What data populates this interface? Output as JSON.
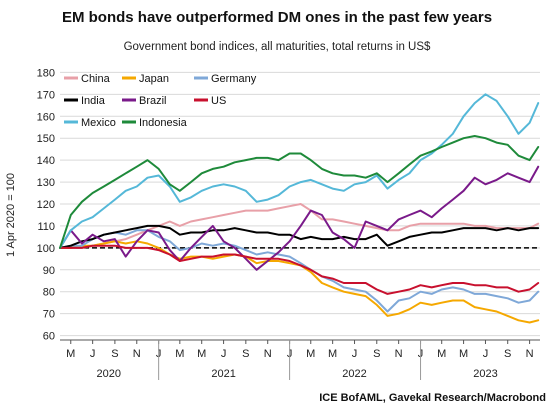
{
  "chart_data": {
    "type": "line",
    "title": "EM bonds have outperformed DM ones in the past few years",
    "subtitle": "Government bond indices, all maturities, total returns in US$",
    "ylabel": "1 Apr 2020 = 100",
    "source": "ICE BofAML, Gavekal Research/Macrobond",
    "ylim": [
      58,
      182
    ],
    "yticks": [
      60,
      70,
      80,
      90,
      100,
      110,
      120,
      130,
      140,
      150,
      160,
      170,
      180
    ],
    "xlim": [
      "2020-04-01",
      "2023-11-30"
    ],
    "month_ticks": [
      {
        "date": "2020-05-01",
        "label": "M"
      },
      {
        "date": "2020-07-01",
        "label": "J"
      },
      {
        "date": "2020-09-01",
        "label": "S"
      },
      {
        "date": "2020-11-01",
        "label": "N"
      },
      {
        "date": "2021-01-01",
        "label": "J"
      },
      {
        "date": "2021-03-01",
        "label": "M"
      },
      {
        "date": "2021-05-01",
        "label": "M"
      },
      {
        "date": "2021-07-01",
        "label": "J"
      },
      {
        "date": "2021-09-01",
        "label": "S"
      },
      {
        "date": "2021-11-01",
        "label": "N"
      },
      {
        "date": "2022-01-01",
        "label": "J"
      },
      {
        "date": "2022-03-01",
        "label": "M"
      },
      {
        "date": "2022-05-01",
        "label": "M"
      },
      {
        "date": "2022-07-01",
        "label": "J"
      },
      {
        "date": "2022-09-01",
        "label": "S"
      },
      {
        "date": "2022-11-01",
        "label": "N"
      },
      {
        "date": "2023-01-01",
        "label": "J"
      },
      {
        "date": "2023-03-01",
        "label": "M"
      },
      {
        "date": "2023-05-01",
        "label": "M"
      },
      {
        "date": "2023-07-01",
        "label": "J"
      },
      {
        "date": "2023-09-01",
        "label": "S"
      },
      {
        "date": "2023-11-01",
        "label": "N"
      }
    ],
    "year_labels": [
      {
        "date": "2020-08-15",
        "label": "2020"
      },
      {
        "date": "2021-07-01",
        "label": "2021"
      },
      {
        "date": "2022-07-01",
        "label": "2022"
      },
      {
        "date": "2023-07-01",
        "label": "2023"
      }
    ],
    "year_separators": [
      "2021-01-01",
      "2022-01-01",
      "2023-01-01"
    ],
    "reference_line": 100,
    "legend_placement": "top-left",
    "grid": "horizontal",
    "x": [
      "2020-04-01",
      "2020-05-01",
      "2020-06-01",
      "2020-07-01",
      "2020-08-01",
      "2020-09-01",
      "2020-10-01",
      "2020-11-01",
      "2020-12-01",
      "2021-01-01",
      "2021-02-01",
      "2021-03-01",
      "2021-04-01",
      "2021-05-01",
      "2021-06-01",
      "2021-07-01",
      "2021-08-01",
      "2021-09-01",
      "2021-10-01",
      "2021-11-01",
      "2021-12-01",
      "2022-01-01",
      "2022-02-01",
      "2022-03-01",
      "2022-04-01",
      "2022-05-01",
      "2022-06-01",
      "2022-07-01",
      "2022-08-01",
      "2022-09-01",
      "2022-10-01",
      "2022-11-01",
      "2022-12-01",
      "2023-01-01",
      "2023-02-01",
      "2023-03-01",
      "2023-04-01",
      "2023-05-01",
      "2023-06-01",
      "2023-07-01",
      "2023-08-01",
      "2023-09-01",
      "2023-10-01",
      "2023-11-01",
      "2023-11-25"
    ],
    "series": [
      {
        "name": "China",
        "color": "#e8a0a8",
        "values": [
          100,
          100,
          100,
          101,
          102,
          103,
          104,
          106,
          108,
          110,
          112,
          110,
          112,
          113,
          114,
          115,
          116,
          117,
          117,
          117,
          118,
          119,
          120,
          117,
          113,
          113,
          112,
          111,
          110,
          109,
          108,
          108,
          110,
          111,
          111,
          111,
          111,
          111,
          110,
          110,
          109,
          109,
          109,
          109,
          111
        ]
      },
      {
        "name": "Japan",
        "color": "#f5a800",
        "values": [
          100,
          100,
          101,
          101,
          102,
          103,
          102,
          103,
          102,
          100,
          97,
          95,
          96,
          96,
          95,
          96,
          97,
          96,
          93,
          94,
          94,
          93,
          92,
          89,
          84,
          82,
          80,
          79,
          78,
          74,
          69,
          70,
          72,
          75,
          74,
          75,
          76,
          76,
          73,
          72,
          71,
          69,
          67,
          66,
          67
        ]
      },
      {
        "name": "Germany",
        "color": "#7fa8d8",
        "values": [
          100,
          101,
          101,
          104,
          106,
          107,
          106,
          108,
          108,
          105,
          103,
          99,
          100,
          102,
          101,
          102,
          101,
          99,
          97,
          98,
          97,
          96,
          93,
          90,
          87,
          85,
          82,
          81,
          80,
          76,
          71,
          76,
          77,
          80,
          79,
          81,
          82,
          81,
          79,
          79,
          78,
          77,
          75,
          76,
          80
        ]
      },
      {
        "name": "India",
        "color": "#000000",
        "values": [
          100,
          101,
          103,
          104,
          106,
          107,
          108,
          109,
          110,
          110,
          109,
          106,
          107,
          107,
          108,
          108,
          109,
          108,
          107,
          107,
          106,
          106,
          104,
          105,
          104,
          104,
          105,
          104,
          104,
          106,
          101,
          103,
          105,
          106,
          107,
          107,
          108,
          109,
          109,
          109,
          108,
          109,
          108,
          109,
          109
        ]
      },
      {
        "name": "Brazil",
        "color": "#7a1a8a",
        "values": [
          100,
          108,
          102,
          106,
          103,
          104,
          96,
          103,
          108,
          107,
          99,
          94,
          100,
          105,
          110,
          103,
          100,
          95,
          90,
          94,
          98,
          103,
          110,
          117,
          115,
          107,
          104,
          100,
          112,
          110,
          108,
          113,
          115,
          117,
          114,
          118,
          122,
          126,
          132,
          129,
          131,
          134,
          132,
          130,
          137
        ]
      },
      {
        "name": "US",
        "color": "#c8102e",
        "values": [
          100,
          100,
          100,
          101,
          101,
          101,
          100,
          100,
          100,
          99,
          97,
          94,
          95,
          96,
          96,
          97,
          97,
          96,
          95,
          95,
          95,
          94,
          92,
          90,
          87,
          86,
          84,
          84,
          84,
          81,
          79,
          80,
          81,
          83,
          82,
          83,
          84,
          84,
          83,
          83,
          82,
          82,
          80,
          81,
          84
        ]
      },
      {
        "name": "Mexico",
        "color": "#55b8d8",
        "values": [
          100,
          108,
          112,
          114,
          118,
          122,
          126,
          128,
          132,
          133,
          128,
          121,
          123,
          126,
          128,
          129,
          128,
          126,
          121,
          122,
          124,
          128,
          130,
          131,
          129,
          127,
          126,
          129,
          130,
          133,
          127,
          131,
          134,
          140,
          143,
          147,
          152,
          160,
          166,
          170,
          167,
          160,
          152,
          157,
          166
        ]
      },
      {
        "name": "Indonesia",
        "color": "#1e8a3a",
        "values": [
          100,
          115,
          121,
          125,
          128,
          131,
          134,
          137,
          140,
          136,
          129,
          126,
          130,
          134,
          136,
          137,
          139,
          140,
          141,
          141,
          140,
          143,
          143,
          140,
          136,
          134,
          133,
          133,
          132,
          134,
          130,
          134,
          138,
          142,
          144,
          146,
          148,
          150,
          151,
          150,
          148,
          147,
          142,
          140,
          146
        ]
      }
    ]
  }
}
